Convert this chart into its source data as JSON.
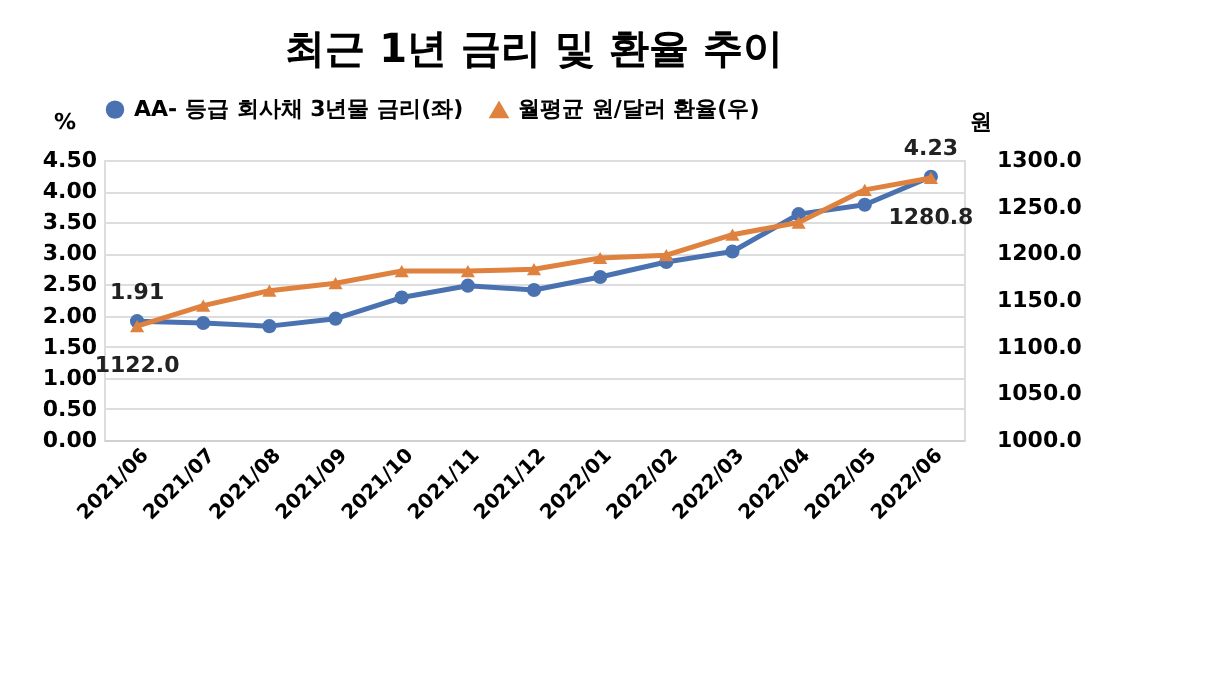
{
  "chart_data": {
    "type": "line",
    "title": "최근 1년 금리 및 환율 추이",
    "ylabel": "%",
    "y2label": "원",
    "categories": [
      "2021/06",
      "2021/07",
      "2021/08",
      "2021/09",
      "2021/10",
      "2021/11",
      "2021/12",
      "2022/01",
      "2022/02",
      "2022/03",
      "2022/04",
      "2022/05",
      "2022/06"
    ],
    "series": [
      {
        "name": "AA- 등급 회사채 3년물 금리(좌)",
        "color": "#4a72b0",
        "marker": "circle",
        "values": [
          1.91,
          1.88,
          1.83,
          1.95,
          2.29,
          2.48,
          2.41,
          2.62,
          2.86,
          3.03,
          3.63,
          3.78,
          4.23
        ],
        "value_labels": [
          "1.91",
          null,
          null,
          null,
          null,
          null,
          null,
          null,
          null,
          null,
          null,
          null,
          "4.23"
        ]
      },
      {
        "name": "월평균 원/달러 환율(우)",
        "color": "#e0823f",
        "marker": "triangle",
        "axis": "y2",
        "values": [
          1122.0,
          1144,
          1160,
          1168,
          1181,
          1181,
          1183,
          1195,
          1198,
          1220,
          1233,
          1268,
          1280.8
        ],
        "value_labels": [
          "1122.0",
          null,
          null,
          null,
          null,
          null,
          null,
          null,
          null,
          null,
          null,
          null,
          "1280.8"
        ]
      }
    ],
    "ylim": [
      0,
      4.5
    ],
    "yticks": [
      {
        "value": 0,
        "label": "0.00"
      },
      {
        "value": 0.5,
        "label": "0.50"
      },
      {
        "value": 1,
        "label": "1.00"
      },
      {
        "value": 1.5,
        "label": "1.50"
      },
      {
        "value": 2,
        "label": "2.00"
      },
      {
        "value": 2.5,
        "label": "2.50"
      },
      {
        "value": 3,
        "label": "3.00"
      },
      {
        "value": 3.5,
        "label": "3.50"
      },
      {
        "value": 4,
        "label": "4.00"
      },
      {
        "value": 4.5,
        "label": "4.50"
      }
    ],
    "y2lim": [
      1000,
      1300
    ],
    "y2ticks": [
      {
        "value": 1000,
        "label": "1000.0"
      },
      {
        "value": 1050,
        "label": "1050.0"
      },
      {
        "value": 1100,
        "label": "1100.0"
      },
      {
        "value": 1150,
        "label": "1150.0"
      },
      {
        "value": 1200,
        "label": "1200.0"
      },
      {
        "value": 1250,
        "label": "1250.0"
      },
      {
        "value": 1300,
        "label": "1300.0"
      }
    ],
    "grid": "y",
    "legend": "top"
  }
}
